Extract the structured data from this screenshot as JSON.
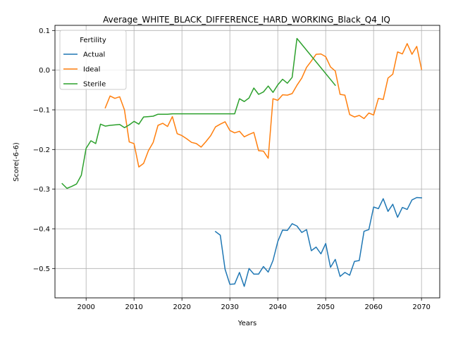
{
  "chart_data": {
    "type": "line",
    "title": "Average_WHITE_BLACK_DIFFERENCE_HARD_WORKING_Black_Q4_IQ",
    "xlabel": "Years",
    "ylabel": "Score(-6-6)",
    "xlim": [
      1993.5,
      2073.8
    ],
    "ylim": [
      -0.574,
      0.113
    ],
    "x_ticks": [
      2000,
      2010,
      2020,
      2030,
      2040,
      2050,
      2060,
      2070
    ],
    "y_ticks": [
      -0.5,
      -0.4,
      -0.3,
      -0.2,
      -0.1,
      0.0,
      0.1
    ],
    "x_tick_labels": [
      "2000",
      "2010",
      "2020",
      "2030",
      "2040",
      "2050",
      "2060",
      "2070"
    ],
    "y_tick_labels": [
      "−0.5",
      "−0.4",
      "−0.3",
      "−0.2",
      "−0.1",
      "0.0",
      "0.1"
    ],
    "grid": true,
    "legend": {
      "title": "Fertility",
      "placement": "top-left"
    },
    "series": [
      {
        "name": "Actual",
        "color": "#1f77b4",
        "x": [
          2027,
          2028,
          2029,
          2030,
          2031,
          2032,
          2033,
          2034,
          2035,
          2036,
          2037,
          2038,
          2039,
          2040,
          2041,
          2042,
          2043,
          2044,
          2045,
          2046,
          2047,
          2048,
          2049,
          2050,
          2051,
          2052,
          2053,
          2054,
          2055,
          2056,
          2057,
          2058,
          2059,
          2060,
          2061,
          2062,
          2063,
          2064,
          2065,
          2066,
          2067,
          2068,
          2069,
          2070
        ],
        "y": [
          -0.407,
          -0.416,
          -0.502,
          -0.54,
          -0.539,
          -0.51,
          -0.545,
          -0.5,
          -0.514,
          -0.514,
          -0.495,
          -0.509,
          -0.48,
          -0.432,
          -0.403,
          -0.404,
          -0.387,
          -0.393,
          -0.409,
          -0.402,
          -0.455,
          -0.446,
          -0.463,
          -0.437,
          -0.497,
          -0.477,
          -0.52,
          -0.51,
          -0.517,
          -0.482,
          -0.48,
          -0.406,
          -0.402,
          -0.345,
          -0.349,
          -0.324,
          -0.356,
          -0.338,
          -0.371,
          -0.346,
          -0.351,
          -0.327,
          -0.321,
          -0.322
        ]
      },
      {
        "name": "Ideal",
        "color": "#ff7f0e",
        "x": [
          2004,
          2005,
          2006,
          2007,
          2008,
          2009,
          2010,
          2011,
          2012,
          2013,
          2014,
          2015,
          2016,
          2017,
          2018,
          2019,
          2020,
          2021,
          2022,
          2023,
          2024,
          2025,
          2026,
          2027,
          2028,
          2029,
          2030,
          2031,
          2032,
          2033,
          2034,
          2035,
          2036,
          2037,
          2038,
          2039,
          2040,
          2041,
          2042,
          2043,
          2044,
          2045,
          2046,
          2047,
          2048,
          2049,
          2050,
          2051,
          2052,
          2053,
          2054,
          2055,
          2056,
          2057,
          2058,
          2059,
          2060,
          2061,
          2062,
          2063,
          2064,
          2065,
          2066,
          2067,
          2068,
          2069,
          2070
        ],
        "y": [
          -0.095,
          -0.065,
          -0.071,
          -0.067,
          -0.1,
          -0.181,
          -0.185,
          -0.244,
          -0.235,
          -0.203,
          -0.182,
          -0.139,
          -0.134,
          -0.142,
          -0.117,
          -0.16,
          -0.165,
          -0.173,
          -0.182,
          -0.185,
          -0.194,
          -0.18,
          -0.165,
          -0.143,
          -0.136,
          -0.13,
          -0.152,
          -0.158,
          -0.154,
          -0.168,
          -0.162,
          -0.157,
          -0.203,
          -0.204,
          -0.222,
          -0.072,
          -0.076,
          -0.062,
          -0.063,
          -0.059,
          -0.038,
          -0.02,
          0.007,
          0.023,
          0.04,
          0.041,
          0.034,
          0.008,
          -0.002,
          -0.061,
          -0.063,
          -0.112,
          -0.118,
          -0.114,
          -0.122,
          -0.108,
          -0.113,
          -0.071,
          -0.074,
          -0.02,
          -0.01,
          0.046,
          0.041,
          0.067,
          0.04,
          0.06,
          0.002
        ]
      },
      {
        "name": "Sterile",
        "color": "#2ca02c",
        "x": [
          1995,
          1996,
          1997,
          1998,
          1999,
          2000,
          2001,
          2002,
          2003,
          2004,
          2005,
          2006,
          2007,
          2008,
          2009,
          2010,
          2011,
          2012,
          2013,
          2014,
          2015,
          2016,
          2017,
          2018,
          2019,
          2020,
          2021,
          2022,
          2023,
          2024,
          2025,
          2026,
          2027,
          2028,
          2029,
          2030,
          2031,
          2032,
          2033,
          2034,
          2035,
          2036,
          2037,
          2038,
          2039,
          2040,
          2041,
          2042,
          2043,
          2044,
          2052
        ],
        "y": [
          -0.286,
          -0.298,
          -0.293,
          -0.287,
          -0.265,
          -0.197,
          -0.178,
          -0.185,
          -0.136,
          -0.141,
          -0.139,
          -0.138,
          -0.137,
          -0.145,
          -0.138,
          -0.129,
          -0.136,
          -0.118,
          -0.117,
          -0.116,
          -0.111,
          -0.111,
          -0.111,
          -0.11,
          -0.11,
          -0.11,
          -0.11,
          -0.11,
          -0.11,
          -0.11,
          -0.11,
          -0.11,
          -0.11,
          -0.11,
          -0.11,
          -0.11,
          -0.11,
          -0.072,
          -0.079,
          -0.07,
          -0.045,
          -0.061,
          -0.055,
          -0.04,
          -0.056,
          -0.037,
          -0.023,
          -0.033,
          -0.018,
          0.08,
          -0.038
        ]
      }
    ]
  }
}
